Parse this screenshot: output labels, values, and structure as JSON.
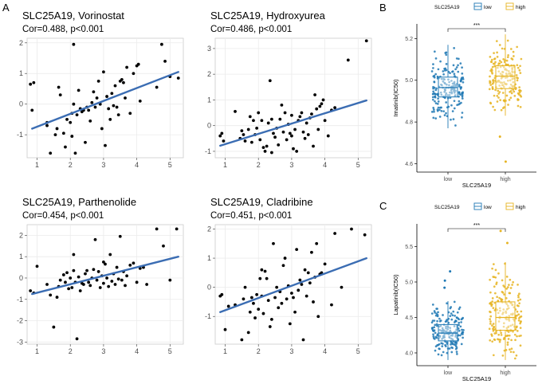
{
  "panel_letters": {
    "a": "A",
    "b": "B",
    "c": "C"
  },
  "colors": {
    "low": "#1f78b4",
    "high": "#e6b422",
    "fit": "#3b6db3",
    "grid": "#ebebeb",
    "panel_bg": "#ffffff"
  },
  "chart_data": [
    {
      "type": "scatter",
      "title": "SLC25A19, Vorinostat",
      "subtitle": "Cor=0.488, p<0.001",
      "xlabel": "",
      "ylabel": "",
      "xlim": [
        0.7,
        5.4
      ],
      "ylim": [
        -1.75,
        2.15
      ],
      "xticks": [
        1,
        2,
        3,
        4,
        5
      ],
      "yticks": [
        -1,
        0,
        1,
        2
      ],
      "fit": {
        "x": [
          0.85,
          5.25
        ],
        "y": [
          -0.8,
          1.05
        ]
      },
      "points": [
        [
          0.8,
          0.65
        ],
        [
          0.9,
          0.7
        ],
        [
          0.85,
          -0.2
        ],
        [
          1.3,
          -0.6
        ],
        [
          1.4,
          -1.6
        ],
        [
          1.55,
          -1.0
        ],
        [
          1.6,
          -0.8
        ],
        [
          1.7,
          0.3
        ],
        [
          1.65,
          0.55
        ],
        [
          1.8,
          -0.95
        ],
        [
          1.85,
          -1.4
        ],
        [
          1.9,
          -0.5
        ],
        [
          2.0,
          -0.6
        ],
        [
          2.05,
          -0.3
        ],
        [
          2.05,
          -1.05
        ],
        [
          2.1,
          0.0
        ],
        [
          2.15,
          -1.6
        ],
        [
          2.2,
          -0.35
        ],
        [
          2.25,
          0.45
        ],
        [
          2.3,
          -0.15
        ],
        [
          2.35,
          -0.25
        ],
        [
          2.4,
          -0.2
        ],
        [
          2.45,
          -1.25
        ],
        [
          2.5,
          -0.1
        ],
        [
          2.55,
          -0.2
        ],
        [
          2.6,
          -0.55
        ],
        [
          2.65,
          0.05
        ],
        [
          2.7,
          0.4
        ],
        [
          2.75,
          -0.1
        ],
        [
          2.8,
          0.2
        ],
        [
          2.85,
          0.75
        ],
        [
          2.9,
          0.0
        ],
        [
          2.95,
          -0.8
        ],
        [
          3.0,
          1.05
        ],
        [
          3.05,
          -1.35
        ],
        [
          3.1,
          0.25
        ],
        [
          3.15,
          -0.15
        ],
        [
          3.2,
          -0.5
        ],
        [
          3.25,
          0.35
        ],
        [
          3.3,
          -0.05
        ],
        [
          3.35,
          0.6
        ],
        [
          3.4,
          -0.1
        ],
        [
          3.45,
          -0.35
        ],
        [
          3.5,
          0.75
        ],
        [
          3.55,
          0.8
        ],
        [
          3.6,
          0.7
        ],
        [
          3.7,
          1.2
        ],
        [
          3.8,
          -0.3
        ],
        [
          3.9,
          1.0
        ],
        [
          4.0,
          1.25
        ],
        [
          4.05,
          1.3
        ],
        [
          4.1,
          0.1
        ],
        [
          2.1,
          1.95
        ],
        [
          3.65,
          0.2
        ],
        [
          4.6,
          0.55
        ],
        [
          4.75,
          1.95
        ],
        [
          4.85,
          1.4
        ],
        [
          5.0,
          0.9
        ],
        [
          5.25,
          0.85
        ],
        [
          1.3,
          -0.7
        ]
      ]
    },
    {
      "type": "scatter",
      "title": "SLC25A19, Hydroxyurea",
      "subtitle": "Cor=0.486, p<0.001",
      "xlabel": "",
      "ylabel": "",
      "xlim": [
        0.7,
        5.4
      ],
      "ylim": [
        -1.25,
        3.4
      ],
      "xticks": [
        1,
        2,
        3,
        4,
        5
      ],
      "yticks": [
        -1,
        0,
        1,
        2,
        3
      ],
      "fit": {
        "x": [
          0.85,
          5.25
        ],
        "y": [
          -0.78,
          0.98
        ]
      },
      "points": [
        [
          0.85,
          -0.4
        ],
        [
          0.9,
          -0.3
        ],
        [
          0.95,
          -0.6
        ],
        [
          1.3,
          0.55
        ],
        [
          1.45,
          -0.5
        ],
        [
          1.5,
          -0.2
        ],
        [
          1.55,
          -0.35
        ],
        [
          1.6,
          -0.6
        ],
        [
          1.7,
          -0.15
        ],
        [
          1.75,
          0.35
        ],
        [
          1.8,
          -0.65
        ],
        [
          1.85,
          0.2
        ],
        [
          1.9,
          -0.35
        ],
        [
          1.95,
          -0.1
        ],
        [
          2.0,
          0.5
        ],
        [
          2.05,
          -0.55
        ],
        [
          2.1,
          0.2
        ],
        [
          2.15,
          -0.85
        ],
        [
          2.2,
          -1.0
        ],
        [
          2.25,
          -0.8
        ],
        [
          2.3,
          0.1
        ],
        [
          2.35,
          1.75
        ],
        [
          2.4,
          0.25
        ],
        [
          2.45,
          -0.3
        ],
        [
          2.5,
          -0.45
        ],
        [
          2.55,
          -0.1
        ],
        [
          2.6,
          -0.75
        ],
        [
          2.65,
          0.25
        ],
        [
          2.7,
          0.8
        ],
        [
          2.75,
          -0.25
        ],
        [
          2.8,
          0.5
        ],
        [
          2.85,
          -0.55
        ],
        [
          2.9,
          0.05
        ],
        [
          2.95,
          -0.3
        ],
        [
          3.0,
          0.4
        ],
        [
          3.05,
          -0.9
        ],
        [
          3.1,
          -0.15
        ],
        [
          3.15,
          -1.0
        ],
        [
          3.2,
          0.2
        ],
        [
          3.25,
          0.35
        ],
        [
          3.3,
          0.5
        ],
        [
          3.35,
          -0.25
        ],
        [
          3.4,
          -0.5
        ],
        [
          3.45,
          0.1
        ],
        [
          3.5,
          -0.35
        ],
        [
          3.55,
          0.3
        ],
        [
          3.6,
          0.45
        ],
        [
          3.65,
          -0.8
        ],
        [
          3.7,
          1.2
        ],
        [
          3.75,
          0.65
        ],
        [
          3.8,
          -0.15
        ],
        [
          3.85,
          0.75
        ],
        [
          3.9,
          0.85
        ],
        [
          3.95,
          1.0
        ],
        [
          4.0,
          0.2
        ],
        [
          4.1,
          -0.4
        ],
        [
          4.2,
          0.6
        ],
        [
          4.3,
          0.7
        ],
        [
          4.7,
          2.55
        ],
        [
          5.25,
          3.3
        ],
        [
          2.4,
          -1.05
        ],
        [
          3.0,
          -0.4
        ]
      ]
    },
    {
      "type": "scatter",
      "title": "SLC25A19, Parthenolide",
      "subtitle": "Cor=0.454, p<0.001",
      "xlabel": "",
      "ylabel": "",
      "xlim": [
        0.7,
        5.4
      ],
      "ylim": [
        -3.1,
        2.5
      ],
      "xticks": [
        1,
        2,
        3,
        4,
        5
      ],
      "yticks": [
        -3,
        -2,
        -1,
        0,
        1,
        2
      ],
      "fit": {
        "x": [
          0.85,
          5.25
        ],
        "y": [
          -0.75,
          1.0
        ]
      },
      "points": [
        [
          0.8,
          -0.6
        ],
        [
          0.9,
          -0.7
        ],
        [
          1.0,
          0.55
        ],
        [
          1.3,
          -0.3
        ],
        [
          1.4,
          -0.8
        ],
        [
          1.5,
          -2.3
        ],
        [
          1.6,
          -0.9
        ],
        [
          1.65,
          -0.4
        ],
        [
          1.7,
          -0.1
        ],
        [
          1.8,
          0.15
        ],
        [
          1.85,
          -0.2
        ],
        [
          1.9,
          0.25
        ],
        [
          1.95,
          -0.5
        ],
        [
          2.0,
          0.0
        ],
        [
          2.05,
          -0.45
        ],
        [
          2.1,
          1.1
        ],
        [
          2.15,
          -0.2
        ],
        [
          2.2,
          -2.85
        ],
        [
          2.25,
          0.05
        ],
        [
          2.3,
          -0.6
        ],
        [
          2.35,
          -0.25
        ],
        [
          2.4,
          -0.3
        ],
        [
          2.45,
          0.2
        ],
        [
          2.5,
          0.35
        ],
        [
          2.55,
          -0.2
        ],
        [
          2.6,
          -0.35
        ],
        [
          2.65,
          0.0
        ],
        [
          2.7,
          0.4
        ],
        [
          2.75,
          1.8
        ],
        [
          2.8,
          -0.1
        ],
        [
          2.85,
          0.3
        ],
        [
          2.9,
          -0.45
        ],
        [
          2.95,
          0.1
        ],
        [
          3.0,
          -0.25
        ],
        [
          3.05,
          0.65
        ],
        [
          3.1,
          0.0
        ],
        [
          3.15,
          -0.4
        ],
        [
          3.2,
          1.1
        ],
        [
          3.25,
          -0.15
        ],
        [
          3.3,
          0.2
        ],
        [
          3.35,
          -0.3
        ],
        [
          3.4,
          0.5
        ],
        [
          3.45,
          -0.05
        ],
        [
          3.5,
          1.95
        ],
        [
          3.55,
          -0.1
        ],
        [
          3.6,
          0.3
        ],
        [
          3.65,
          -0.35
        ],
        [
          3.7,
          0.1
        ],
        [
          3.8,
          0.6
        ],
        [
          3.9,
          0.7
        ],
        [
          4.0,
          -0.2
        ],
        [
          4.1,
          0.45
        ],
        [
          4.2,
          0.5
        ],
        [
          4.3,
          -0.3
        ],
        [
          4.6,
          2.3
        ],
        [
          4.8,
          1.5
        ],
        [
          5.0,
          -0.1
        ],
        [
          5.2,
          2.3
        ],
        [
          2.1,
          0.35
        ],
        [
          3.0,
          0.75
        ]
      ]
    },
    {
      "type": "scatter",
      "title": "SLC25A19, Cladribine",
      "subtitle": "Cor=0.451, p<0.001",
      "xlabel": "",
      "ylabel": "",
      "xlim": [
        0.7,
        5.4
      ],
      "ylim": [
        -1.95,
        2.15
      ],
      "xticks": [
        1,
        2,
        3,
        4,
        5
      ],
      "yticks": [
        -1,
        0,
        1,
        2
      ],
      "fit": {
        "x": [
          0.85,
          5.25
        ],
        "y": [
          -0.85,
          1.0
        ]
      },
      "points": [
        [
          0.85,
          -0.3
        ],
        [
          0.9,
          -0.25
        ],
        [
          1.0,
          -1.45
        ],
        [
          1.1,
          -0.65
        ],
        [
          1.3,
          -0.6
        ],
        [
          1.5,
          -1.8
        ],
        [
          1.55,
          -0.4
        ],
        [
          1.6,
          0.0
        ],
        [
          1.7,
          -1.55
        ],
        [
          1.75,
          -0.85
        ],
        [
          1.8,
          -0.35
        ],
        [
          1.85,
          -0.55
        ],
        [
          1.9,
          -1.05
        ],
        [
          1.95,
          -0.25
        ],
        [
          2.0,
          -0.75
        ],
        [
          2.05,
          0.3
        ],
        [
          2.1,
          -0.3
        ],
        [
          2.15,
          -0.9
        ],
        [
          2.2,
          0.55
        ],
        [
          2.25,
          0.3
        ],
        [
          2.3,
          -0.45
        ],
        [
          2.35,
          -1.35
        ],
        [
          2.4,
          -1.1
        ],
        [
          2.45,
          1.5
        ],
        [
          2.5,
          -0.35
        ],
        [
          2.55,
          0.0
        ],
        [
          2.6,
          -0.7
        ],
        [
          2.65,
          -0.15
        ],
        [
          2.7,
          -0.55
        ],
        [
          2.75,
          0.75
        ],
        [
          2.8,
          1.0
        ],
        [
          2.85,
          -0.4
        ],
        [
          2.9,
          0.05
        ],
        [
          2.95,
          -1.25
        ],
        [
          3.0,
          -0.2
        ],
        [
          3.05,
          -0.35
        ],
        [
          3.1,
          -0.85
        ],
        [
          3.15,
          1.3
        ],
        [
          3.2,
          -0.1
        ],
        [
          3.25,
          0.25
        ],
        [
          3.3,
          0.1
        ],
        [
          3.35,
          -1.8
        ],
        [
          3.4,
          0.6
        ],
        [
          3.45,
          -0.3
        ],
        [
          3.5,
          0.5
        ],
        [
          3.55,
          0.15
        ],
        [
          3.6,
          1.2
        ],
        [
          3.65,
          -0.5
        ],
        [
          3.7,
          0.35
        ],
        [
          3.75,
          1.5
        ],
        [
          3.8,
          -1.0
        ],
        [
          3.85,
          0.45
        ],
        [
          3.9,
          0.5
        ],
        [
          4.0,
          0.8
        ],
        [
          4.2,
          -0.6
        ],
        [
          4.3,
          1.85
        ],
        [
          4.5,
          0.0
        ],
        [
          4.8,
          2.0
        ],
        [
          5.2,
          1.8
        ],
        [
          2.1,
          0.6
        ]
      ]
    },
    {
      "type": "box",
      "legend_title": "SLC25A19",
      "legend_labels": [
        "low",
        "high"
      ],
      "categories": [
        "low",
        "high"
      ],
      "xlabel": "SLC25A19",
      "ylabel": "Imatinib(IC50)",
      "significance": "***",
      "ylim": [
        4.56,
        5.27
      ],
      "yticks": [
        4.6,
        4.8,
        5.0,
        5.2
      ],
      "ytick_labels": [
        "4.6",
        "4.8",
        "5.0",
        "5.2"
      ],
      "boxes": [
        {
          "group": "low",
          "min": 4.77,
          "q1": 4.92,
          "median": 4.965,
          "q3": 5.015,
          "max": 5.17,
          "outliers": []
        },
        {
          "group": "high",
          "min": 4.83,
          "q1": 4.96,
          "median": 5.02,
          "q3": 5.07,
          "max": 5.22,
          "outliers": [
            4.61,
            4.73
          ]
        }
      ]
    },
    {
      "type": "box",
      "legend_title": "SLC25A19",
      "legend_labels": [
        "low",
        "high"
      ],
      "categories": [
        "low",
        "high"
      ],
      "xlabel": "SLC25A19",
      "ylabel": "Lapatinib(IC50)",
      "significance": "***",
      "ylim": [
        3.82,
        5.82
      ],
      "yticks": [
        4.0,
        4.5,
        5.0,
        5.5
      ],
      "ytick_labels": [
        "4.0",
        "4.5",
        "5.0",
        "5.5"
      ],
      "boxes": [
        {
          "group": "low",
          "min": 3.9,
          "q1": 4.17,
          "median": 4.28,
          "q3": 4.4,
          "max": 4.73,
          "outliers": [
            4.92,
            5.02,
            5.15
          ]
        },
        {
          "group": "high",
          "min": 3.9,
          "q1": 4.32,
          "median": 4.5,
          "q3": 4.72,
          "max": 5.28,
          "outliers": [
            5.55,
            5.72
          ]
        }
      ]
    }
  ]
}
